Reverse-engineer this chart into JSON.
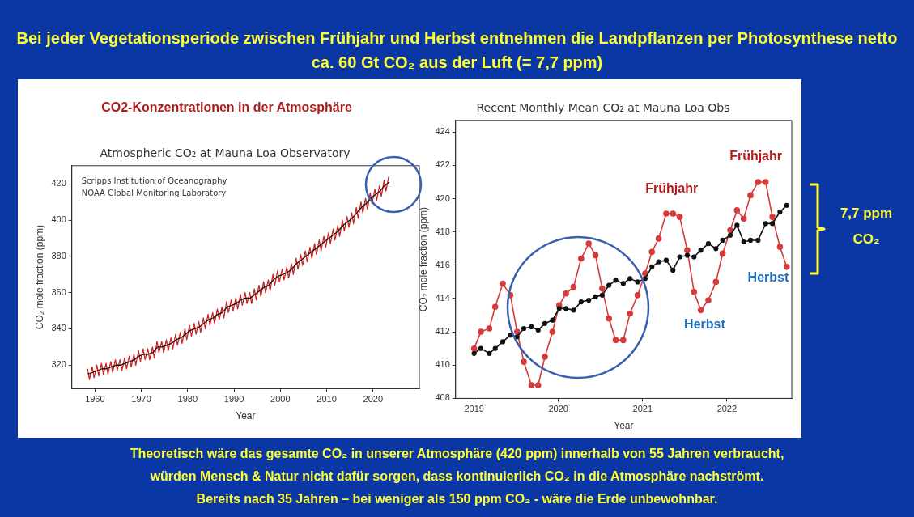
{
  "chart_data": [
    {
      "type": "other",
      "title": "Bei jeder Vegetationsperiode zwischen Frühjahr und Herbst entnehmen die Landpflanzen per Photosynthese netto ca. 60 Gt CO₂ aus der Luft (= 7,7 ppm)",
      "annotations": [
        "Theoretisch wäre das gesamte CO₂ in unserer Atmosphäre (420 ppm) innerhalb von 55 Jahren verbraucht,",
        "würden Mensch & Natur nicht dafür sorgen, dass kontinuierlich CO₂ in die Atmosphäre nachströmt.",
        "Bereits nach 35 Jahren – bei weniger als 150 ppm CO₂ - wäre die Erde unbewohnbar."
      ]
    },
    {
      "type": "line",
      "subtitle": "CO2-Konzentrationen in der Atmosphäre",
      "title": "Atmospheric CO₂ at Mauna Loa Observatory",
      "xlabel": "Year",
      "ylabel": "CO₂ mole fraction (ppm)",
      "xlim": [
        1955,
        2030
      ],
      "xticks": [
        1960,
        1970,
        1980,
        1990,
        2000,
        2010,
        2020
      ],
      "ylim": [
        307,
        430
      ],
      "yticks": [
        320,
        340,
        360,
        380,
        400,
        420
      ],
      "annotations": [
        "Scripps Institution of Oceanography",
        "NOAA Global Monitoring Laboratory"
      ],
      "series": [
        {
          "color": "#cc2222",
          "x": [
            1958.4,
            1958.8,
            1959.4,
            1959.8,
            1960.4,
            1960.8,
            1961.4,
            1961.8,
            1962.4,
            1962.8,
            1963.4,
            1963.8,
            1964.4,
            1964.8,
            1965.4,
            1965.8,
            1966.4,
            1966.8,
            1967.4,
            1967.8,
            1968.4,
            1968.8,
            1969.4,
            1969.8,
            1970.4,
            1970.8,
            1971.4,
            1971.8,
            1972.4,
            1972.8,
            1973.4,
            1973.8,
            1974.4,
            1974.8,
            1975.4,
            1975.8,
            1976.4,
            1976.8,
            1977.4,
            1977.8,
            1978.4,
            1978.8,
            1979.4,
            1979.8,
            1980.4,
            1980.8,
            1981.4,
            1981.8,
            1982.4,
            1982.8,
            1983.4,
            1983.8,
            1984.4,
            1984.8,
            1985.4,
            1985.8,
            1986.4,
            1986.8,
            1987.4,
            1987.8,
            1988.4,
            1988.8,
            1989.4,
            1989.8,
            1990.4,
            1990.8,
            1991.4,
            1991.8,
            1992.4,
            1992.8,
            1993.4,
            1993.8,
            1994.4,
            1994.8,
            1995.4,
            1995.8,
            1996.4,
            1996.8,
            1997.4,
            1997.8,
            1998.4,
            1998.8,
            1999.4,
            1999.8,
            2000.4,
            2000.8,
            2001.4,
            2001.8,
            2002.4,
            2002.8,
            2003.4,
            2003.8,
            2004.4,
            2004.8,
            2005.4,
            2005.8,
            2006.4,
            2006.8,
            2007.4,
            2007.8,
            2008.4,
            2008.8,
            2009.4,
            2009.8,
            2010.4,
            2010.8,
            2011.4,
            2011.8,
            2012.4,
            2012.8,
            2013.4,
            2013.8,
            2014.4,
            2014.8,
            2015.4,
            2015.8,
            2016.4,
            2016.8,
            2017.4,
            2017.8,
            2018.4,
            2018.8,
            2019.4,
            2019.8,
            2020.4,
            2020.8,
            2021.4,
            2021.8,
            2022.4,
            2022.8,
            2023.4
          ],
          "values": [
            318,
            312,
            319,
            313,
            320,
            314,
            321,
            315,
            321,
            315,
            322,
            316,
            323,
            317,
            323,
            317,
            324,
            318,
            325,
            319,
            326,
            320,
            328,
            322,
            329,
            323,
            329,
            323,
            330,
            324,
            333,
            327,
            333,
            327,
            334,
            328,
            335,
            329,
            337,
            331,
            338,
            332,
            340,
            334,
            342,
            336,
            343,
            337,
            344,
            338,
            346,
            340,
            348,
            342,
            349,
            343,
            351,
            345,
            352,
            346,
            355,
            349,
            356,
            350,
            357,
            351,
            359,
            353,
            360,
            354,
            360,
            354,
            362,
            356,
            364,
            358,
            366,
            360,
            367,
            361,
            370,
            364,
            372,
            366,
            373,
            367,
            374,
            368,
            376,
            370,
            379,
            373,
            381,
            375,
            383,
            377,
            385,
            379,
            387,
            381,
            389,
            383,
            391,
            385,
            393,
            387,
            395,
            389,
            397,
            391,
            400,
            394,
            402,
            396,
            404,
            398,
            407,
            401,
            410,
            404,
            412,
            406,
            415,
            409,
            417,
            411,
            419,
            413,
            422,
            416,
            424
          ]
        },
        {
          "color": "#111111",
          "x": [
            1958.5,
            1959.5,
            1960.5,
            1961.5,
            1962.5,
            1963.5,
            1964.5,
            1965.5,
            1966.5,
            1967.5,
            1968.5,
            1969.5,
            1970.5,
            1971.5,
            1972.5,
            1973.5,
            1974.5,
            1975.5,
            1976.5,
            1977.5,
            1978.5,
            1979.5,
            1980.5,
            1981.5,
            1982.5,
            1983.5,
            1984.5,
            1985.5,
            1986.5,
            1987.5,
            1988.5,
            1989.5,
            1990.5,
            1991.5,
            1992.5,
            1993.5,
            1994.5,
            1995.5,
            1996.5,
            1997.5,
            1998.5,
            1999.5,
            2000.5,
            2001.5,
            2002.5,
            2003.5,
            2004.5,
            2005.5,
            2006.5,
            2007.5,
            2008.5,
            2009.5,
            2010.5,
            2011.5,
            2012.5,
            2013.5,
            2014.5,
            2015.5,
            2016.5,
            2017.5,
            2018.5,
            2019.5,
            2020.5,
            2021.5,
            2022.5,
            2023.5
          ],
          "values": [
            315,
            316,
            317,
            318,
            318,
            319,
            320,
            320,
            321,
            322,
            323,
            325,
            326,
            326,
            327,
            330,
            330,
            331,
            332,
            334,
            335,
            337,
            339,
            340,
            341,
            343,
            345,
            346,
            348,
            349,
            352,
            353,
            354,
            356,
            357,
            357,
            359,
            361,
            363,
            364,
            367,
            369,
            370,
            371,
            373,
            376,
            378,
            380,
            382,
            384,
            386,
            388,
            390,
            392,
            394,
            397,
            399,
            401,
            404,
            407,
            409,
            412,
            414,
            416,
            419,
            421
          ]
        }
      ]
    },
    {
      "type": "line",
      "title": "Recent Monthly Mean CO₂ at Mauna Loa Obs",
      "xlabel": "Year",
      "ylabel": "CO₂ mole fraction (ppm)",
      "xlim": [
        2018.78,
        2022.77
      ],
      "xticks": [
        2019,
        2020,
        2021,
        2022
      ],
      "ylim": [
        408,
        424.7
      ],
      "yticks": [
        408,
        410,
        412,
        414,
        416,
        418,
        420,
        422,
        424
      ],
      "marker": "circle",
      "x": [
        2019.0,
        2019.08,
        2019.18,
        2019.25,
        2019.34,
        2019.43,
        2019.51,
        2019.59,
        2019.68,
        2019.76,
        2019.84,
        2019.93,
        2020.01,
        2020.09,
        2020.18,
        2020.27,
        2020.36,
        2020.44,
        2020.52,
        2020.6,
        2020.68,
        2020.77,
        2020.85,
        2020.94,
        2021.03,
        2021.11,
        2021.19,
        2021.28,
        2021.36,
        2021.44,
        2021.53,
        2021.61,
        2021.69,
        2021.78,
        2021.87,
        2021.95,
        2022.04,
        2022.12,
        2022.2,
        2022.28,
        2022.37,
        2022.46,
        2022.54,
        2022.63,
        2022.71
      ],
      "annotations": [
        "Frühjahr",
        "Frühjahr",
        "Herbst",
        "Herbst",
        "7,7 ppm CO₂"
      ],
      "series": [
        {
          "color": "#d63a3a",
          "values": [
            411.0,
            412.0,
            412.2,
            413.5,
            414.9,
            414.2,
            412.0,
            410.2,
            408.8,
            408.8,
            410.5,
            412.0,
            413.6,
            414.3,
            414.7,
            416.4,
            417.3,
            416.6,
            414.6,
            412.8,
            411.5,
            411.5,
            413.1,
            414.2,
            415.5,
            416.8,
            417.6,
            419.1,
            419.1,
            418.9,
            416.9,
            414.4,
            413.3,
            413.9,
            415.0,
            416.7,
            418.1,
            419.3,
            418.8,
            420.2,
            421.0,
            421.0,
            418.9,
            417.1,
            415.9
          ]
        },
        {
          "color": "#111111",
          "values": [
            410.7,
            411.0,
            410.7,
            411.0,
            411.4,
            411.8,
            411.7,
            412.2,
            412.3,
            412.1,
            412.5,
            412.7,
            413.4,
            413.4,
            413.3,
            413.8,
            413.9,
            414.1,
            414.2,
            414.8,
            415.1,
            414.9,
            415.2,
            415.0,
            415.2,
            415.9,
            416.2,
            416.3,
            415.7,
            416.5,
            416.6,
            416.5,
            416.9,
            417.3,
            417.0,
            417.5,
            417.8,
            418.4,
            417.4,
            417.5,
            417.5,
            418.5,
            418.5,
            419.2,
            419.6
          ]
        }
      ]
    }
  ]
}
